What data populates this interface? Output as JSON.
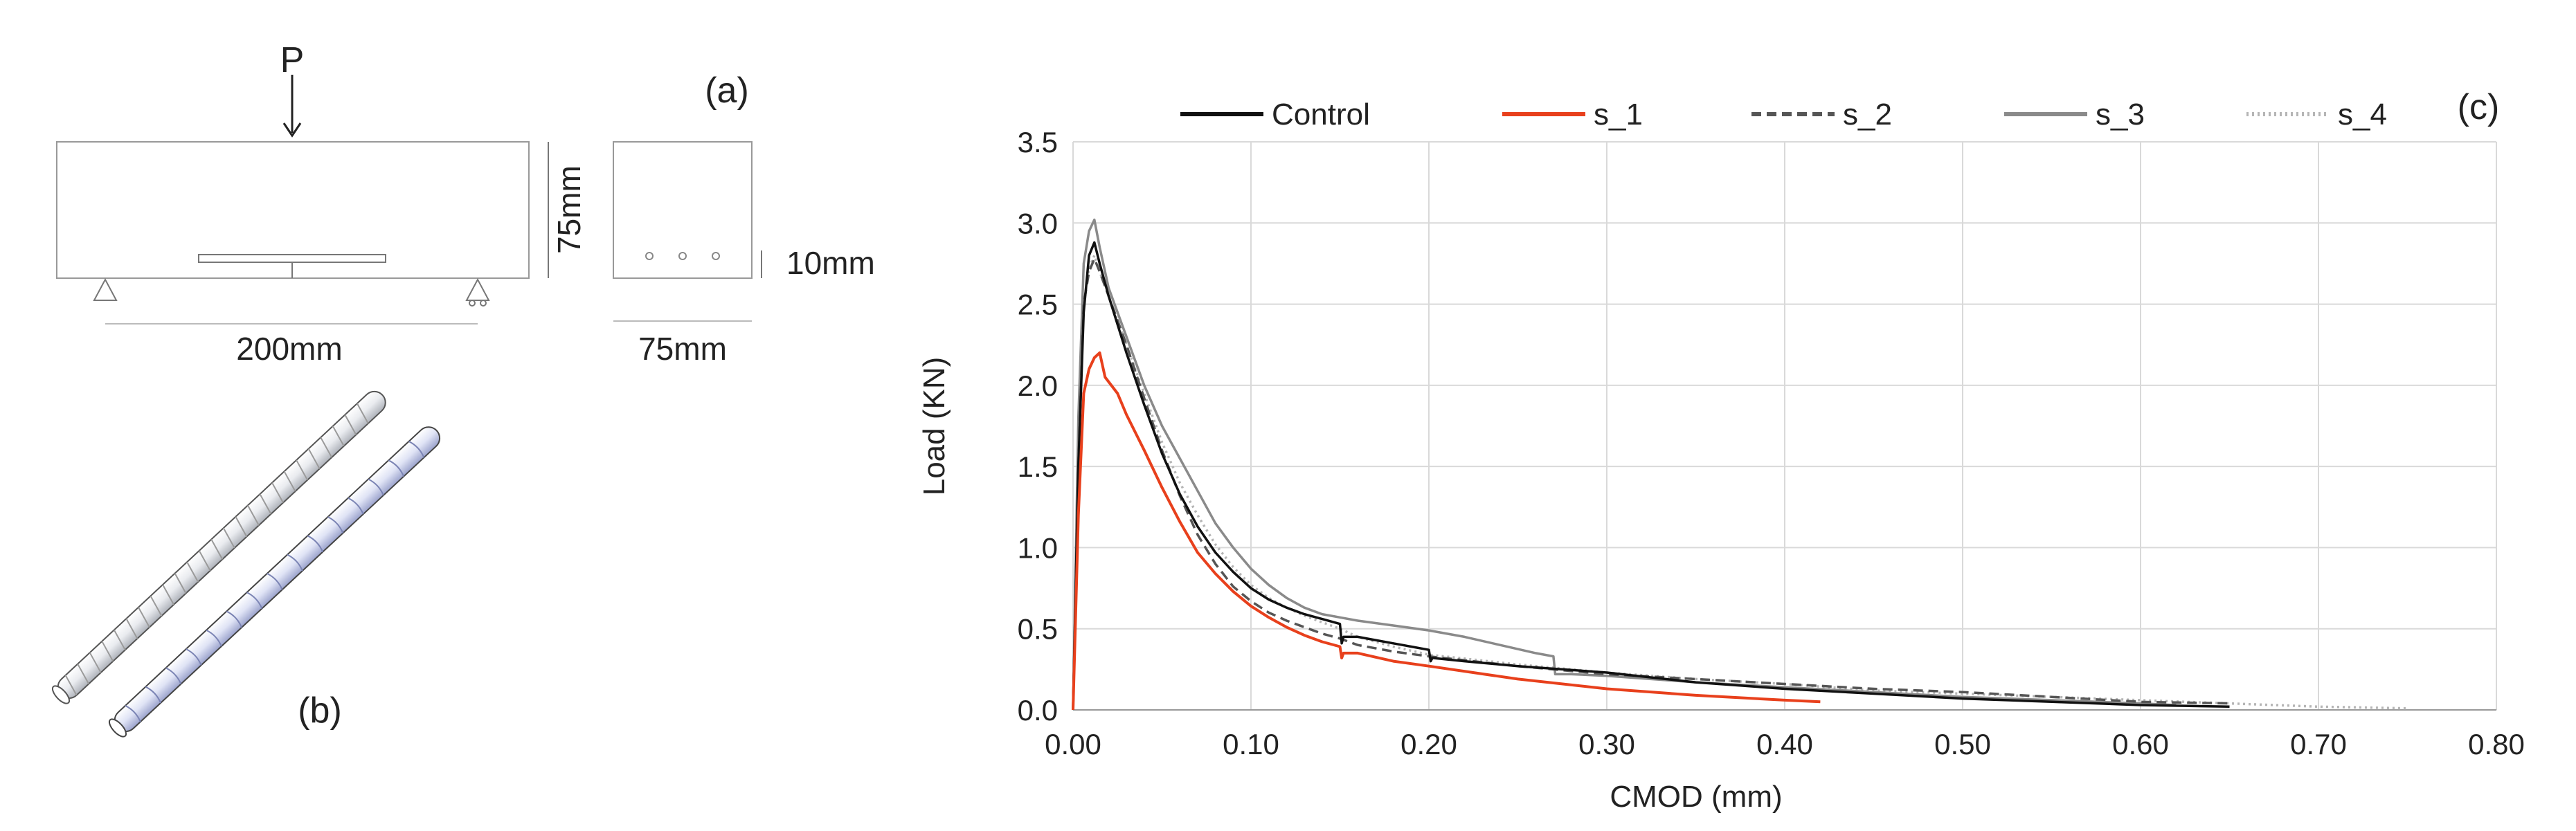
{
  "panel_a": {
    "label": "(a)",
    "load_label": "P",
    "height_label": "75mm",
    "notch_label": "10mm",
    "span_label": "200mm",
    "width_label": "75mm"
  },
  "panel_b": {
    "label": "(b)"
  },
  "chart_data": {
    "type": "line",
    "panel_label": "(c)",
    "title": "",
    "xlabel": "CMOD (mm)",
    "ylabel": "Load (KN)",
    "xlim": [
      0,
      0.8
    ],
    "ylim": [
      0,
      3.5
    ],
    "x_ticks": [
      0,
      0.1,
      0.2,
      0.3,
      0.4,
      0.5,
      0.6,
      0.7,
      0.8
    ],
    "x_tick_labels": [
      "0.00",
      "0.10",
      "0.20",
      "0.30",
      "0.40",
      "0.50",
      "0.60",
      "0.70",
      "0.80"
    ],
    "y_ticks": [
      0,
      0.5,
      1,
      1.5,
      2,
      2.5,
      3,
      3.5
    ],
    "y_tick_labels": [
      "0.0",
      "0.5",
      "1.0",
      "1.5",
      "2.0",
      "2.5",
      "3.0",
      "3.5"
    ],
    "grid": true,
    "legend_position": "top",
    "series": [
      {
        "name": "Control",
        "color": "#111111",
        "style": "solid",
        "points": [
          [
            0,
            0
          ],
          [
            0.003,
            1.5
          ],
          [
            0.006,
            2.45
          ],
          [
            0.009,
            2.8
          ],
          [
            0.012,
            2.88
          ],
          [
            0.015,
            2.75
          ],
          [
            0.02,
            2.55
          ],
          [
            0.03,
            2.2
          ],
          [
            0.04,
            1.88
          ],
          [
            0.05,
            1.58
          ],
          [
            0.06,
            1.33
          ],
          [
            0.07,
            1.13
          ],
          [
            0.08,
            0.97
          ],
          [
            0.09,
            0.85
          ],
          [
            0.1,
            0.75
          ],
          [
            0.11,
            0.68
          ],
          [
            0.12,
            0.63
          ],
          [
            0.13,
            0.59
          ],
          [
            0.14,
            0.56
          ],
          [
            0.15,
            0.53
          ],
          [
            0.151,
            0.41
          ],
          [
            0.152,
            0.45
          ],
          [
            0.16,
            0.45
          ],
          [
            0.17,
            0.43
          ],
          [
            0.18,
            0.41
          ],
          [
            0.19,
            0.39
          ],
          [
            0.2,
            0.37
          ],
          [
            0.201,
            0.3
          ],
          [
            0.202,
            0.32
          ],
          [
            0.22,
            0.3
          ],
          [
            0.25,
            0.27
          ],
          [
            0.3,
            0.23
          ],
          [
            0.35,
            0.17
          ],
          [
            0.4,
            0.13
          ],
          [
            0.45,
            0.1
          ],
          [
            0.5,
            0.07
          ],
          [
            0.55,
            0.05
          ],
          [
            0.6,
            0.03
          ],
          [
            0.65,
            0.02
          ]
        ]
      },
      {
        "name": "s_1",
        "color": "#e8401c",
        "style": "solid",
        "points": [
          [
            0,
            0
          ],
          [
            0.003,
            1.2
          ],
          [
            0.006,
            1.95
          ],
          [
            0.009,
            2.1
          ],
          [
            0.012,
            2.17
          ],
          [
            0.015,
            2.2
          ],
          [
            0.018,
            2.05
          ],
          [
            0.025,
            1.95
          ],
          [
            0.03,
            1.82
          ],
          [
            0.04,
            1.6
          ],
          [
            0.05,
            1.37
          ],
          [
            0.06,
            1.16
          ],
          [
            0.07,
            0.97
          ],
          [
            0.08,
            0.84
          ],
          [
            0.09,
            0.73
          ],
          [
            0.1,
            0.64
          ],
          [
            0.11,
            0.57
          ],
          [
            0.12,
            0.51
          ],
          [
            0.13,
            0.46
          ],
          [
            0.14,
            0.42
          ],
          [
            0.15,
            0.39
          ],
          [
            0.151,
            0.32
          ],
          [
            0.152,
            0.35
          ],
          [
            0.16,
            0.35
          ],
          [
            0.18,
            0.3
          ],
          [
            0.2,
            0.27
          ],
          [
            0.25,
            0.19
          ],
          [
            0.3,
            0.13
          ],
          [
            0.35,
            0.09
          ],
          [
            0.4,
            0.06
          ],
          [
            0.42,
            0.05
          ]
        ]
      },
      {
        "name": "s_2",
        "color": "#555555",
        "style": "dashed",
        "points": [
          [
            0,
            0
          ],
          [
            0.003,
            1.5
          ],
          [
            0.006,
            2.5
          ],
          [
            0.009,
            2.7
          ],
          [
            0.012,
            2.78
          ],
          [
            0.015,
            2.7
          ],
          [
            0.02,
            2.55
          ],
          [
            0.03,
            2.25
          ],
          [
            0.04,
            1.92
          ],
          [
            0.05,
            1.6
          ],
          [
            0.06,
            1.32
          ],
          [
            0.07,
            1.08
          ],
          [
            0.08,
            0.9
          ],
          [
            0.09,
            0.76
          ],
          [
            0.1,
            0.67
          ],
          [
            0.11,
            0.6
          ],
          [
            0.12,
            0.55
          ],
          [
            0.13,
            0.51
          ],
          [
            0.14,
            0.47
          ],
          [
            0.15,
            0.44
          ],
          [
            0.16,
            0.4
          ],
          [
            0.18,
            0.36
          ],
          [
            0.2,
            0.33
          ],
          [
            0.25,
            0.27
          ],
          [
            0.3,
            0.22
          ],
          [
            0.35,
            0.19
          ],
          [
            0.4,
            0.16
          ],
          [
            0.45,
            0.13
          ],
          [
            0.5,
            0.11
          ],
          [
            0.55,
            0.08
          ],
          [
            0.6,
            0.05
          ],
          [
            0.65,
            0.04
          ]
        ]
      },
      {
        "name": "s_3",
        "color": "#8a8a8a",
        "style": "solid",
        "points": [
          [
            0,
            0
          ],
          [
            0.003,
            1.8
          ],
          [
            0.006,
            2.75
          ],
          [
            0.009,
            2.95
          ],
          [
            0.012,
            3.02
          ],
          [
            0.015,
            2.85
          ],
          [
            0.02,
            2.6
          ],
          [
            0.03,
            2.3
          ],
          [
            0.04,
            2.0
          ],
          [
            0.05,
            1.75
          ],
          [
            0.06,
            1.55
          ],
          [
            0.07,
            1.35
          ],
          [
            0.08,
            1.15
          ],
          [
            0.09,
            1.0
          ],
          [
            0.1,
            0.87
          ],
          [
            0.11,
            0.77
          ],
          [
            0.12,
            0.69
          ],
          [
            0.13,
            0.63
          ],
          [
            0.14,
            0.59
          ],
          [
            0.15,
            0.57
          ],
          [
            0.16,
            0.55
          ],
          [
            0.18,
            0.52
          ],
          [
            0.2,
            0.49
          ],
          [
            0.22,
            0.45
          ],
          [
            0.24,
            0.4
          ],
          [
            0.26,
            0.35
          ],
          [
            0.27,
            0.33
          ],
          [
            0.271,
            0.22
          ],
          [
            0.28,
            0.22
          ],
          [
            0.3,
            0.21
          ],
          [
            0.35,
            0.17
          ],
          [
            0.4,
            0.14
          ],
          [
            0.45,
            0.11
          ],
          [
            0.5,
            0.08
          ],
          [
            0.55,
            0.06
          ],
          [
            0.6,
            0.04
          ],
          [
            0.62,
            0.03
          ]
        ]
      },
      {
        "name": "s_4",
        "color": "#b5b5b5",
        "style": "dotted",
        "points": [
          [
            0,
            0
          ],
          [
            0.003,
            1.6
          ],
          [
            0.006,
            2.5
          ],
          [
            0.009,
            2.72
          ],
          [
            0.012,
            2.8
          ],
          [
            0.015,
            2.7
          ],
          [
            0.02,
            2.55
          ],
          [
            0.03,
            2.25
          ],
          [
            0.04,
            1.95
          ],
          [
            0.05,
            1.65
          ],
          [
            0.06,
            1.4
          ],
          [
            0.07,
            1.2
          ],
          [
            0.08,
            1.02
          ],
          [
            0.09,
            0.88
          ],
          [
            0.1,
            0.77
          ],
          [
            0.11,
            0.69
          ],
          [
            0.12,
            0.63
          ],
          [
            0.13,
            0.58
          ],
          [
            0.14,
            0.54
          ],
          [
            0.15,
            0.5
          ],
          [
            0.16,
            0.45
          ],
          [
            0.18,
            0.39
          ],
          [
            0.2,
            0.34
          ],
          [
            0.25,
            0.28
          ],
          [
            0.3,
            0.23
          ],
          [
            0.35,
            0.19
          ],
          [
            0.4,
            0.16
          ],
          [
            0.45,
            0.12
          ],
          [
            0.5,
            0.1
          ],
          [
            0.55,
            0.08
          ],
          [
            0.6,
            0.06
          ],
          [
            0.65,
            0.04
          ],
          [
            0.7,
            0.02
          ],
          [
            0.75,
            0.01
          ]
        ]
      }
    ]
  }
}
